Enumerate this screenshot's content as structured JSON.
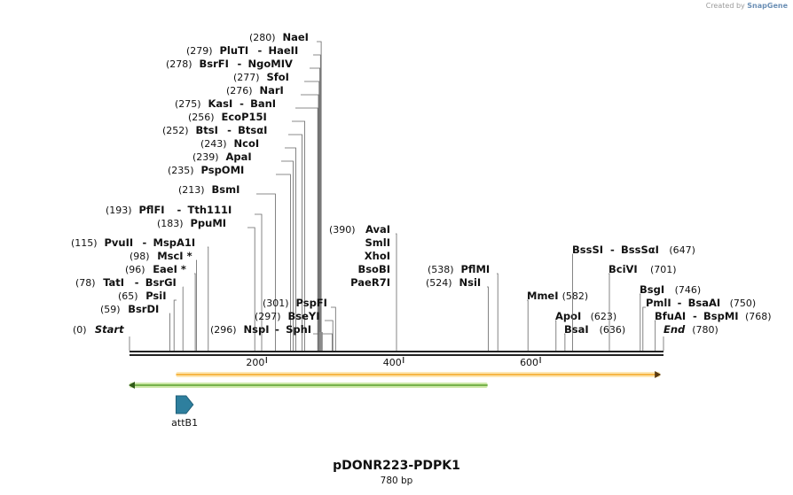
{
  "credit": {
    "prefix": "Created by",
    "brand": "SnapGene"
  },
  "plasmid": {
    "name": "pDONR223-PDPK1",
    "length_label": "780 bp"
  },
  "sites": [
    {
      "id": "start",
      "pos": "(0)",
      "names": [
        "Start"
      ],
      "bp": 0,
      "marker": true
    },
    {
      "id": "bsrdi",
      "pos": "(59)",
      "names": [
        "BsrDI"
      ],
      "bp": 59
    },
    {
      "id": "psii",
      "pos": "(65)",
      "names": [
        "PsiI"
      ],
      "bp": 65
    },
    {
      "id": "tati",
      "pos": "(78)",
      "names": [
        "TatI",
        "BsrGI"
      ],
      "bp": 78
    },
    {
      "id": "eaei",
      "pos": "(96)",
      "names": [
        "EaeI *"
      ],
      "bp": 96
    },
    {
      "id": "msci",
      "pos": "(98)",
      "names": [
        "MscI *"
      ],
      "bp": 98
    },
    {
      "id": "pvuii",
      "pos": "(115)",
      "names": [
        "PvuII",
        "MspA1I"
      ],
      "bp": 115
    },
    {
      "id": "ppumi",
      "pos": "(183)",
      "names": [
        "PpuMI"
      ],
      "bp": 183
    },
    {
      "id": "pflfi",
      "pos": "(193)",
      "names": [
        "PflFI",
        "Tth111I"
      ],
      "bp": 193
    },
    {
      "id": "bsmi",
      "pos": "(213)",
      "names": [
        "BsmI"
      ],
      "bp": 213
    },
    {
      "id": "pspomi",
      "pos": "(235)",
      "names": [
        "PspOMI"
      ],
      "bp": 235
    },
    {
      "id": "apai",
      "pos": "(239)",
      "names": [
        "ApaI"
      ],
      "bp": 239
    },
    {
      "id": "ncoi",
      "pos": "(243)",
      "names": [
        "NcoI"
      ],
      "bp": 243
    },
    {
      "id": "btsi",
      "pos": "(252)",
      "names": [
        "BtsI",
        "BtsαI"
      ],
      "bp": 252
    },
    {
      "id": "ecop15i",
      "pos": "(256)",
      "names": [
        "EcoP15I"
      ],
      "bp": 256
    },
    {
      "id": "kasi",
      "pos": "(275)",
      "names": [
        "KasI",
        "BanI"
      ],
      "bp": 275
    },
    {
      "id": "nari",
      "pos": "(276)",
      "names": [
        "NarI"
      ],
      "bp": 276
    },
    {
      "id": "sfoi",
      "pos": "(277)",
      "names": [
        "SfoI"
      ],
      "bp": 277
    },
    {
      "id": "bsrfi",
      "pos": "(278)",
      "names": [
        "BsrFI",
        "NgoMIV"
      ],
      "bp": 278
    },
    {
      "id": "pluti",
      "pos": "(279)",
      "names": [
        "PluTI",
        "HaeII"
      ],
      "bp": 279
    },
    {
      "id": "naei",
      "pos": "(280)",
      "names": [
        "NaeI"
      ],
      "bp": 280
    },
    {
      "id": "nspi",
      "pos": "(296)",
      "names": [
        "NspI",
        "SphI"
      ],
      "bp": 296
    },
    {
      "id": "bseyi",
      "pos": "(297)",
      "names": [
        "BseYI"
      ],
      "bp": 297
    },
    {
      "id": "pspfi",
      "pos": "(301)",
      "names": [
        "PspFI"
      ],
      "bp": 301
    },
    {
      "id": "avai",
      "pos": "(390)",
      "names": [
        "AvaI",
        "SmlI",
        "XhoI",
        "BsoBI",
        "PaeR7I"
      ],
      "bp": 390
    },
    {
      "id": "nsii",
      "pos": "(524)",
      "names": [
        "NsiI"
      ],
      "bp": 524
    },
    {
      "id": "pflmi",
      "pos": "(538)",
      "names": [
        "PflMI"
      ],
      "bp": 538
    },
    {
      "id": "mmei",
      "pos": "(582)",
      "names": [
        "MmeI"
      ],
      "bp": 582
    },
    {
      "id": "apoi",
      "pos": "(623)",
      "names": [
        "ApoI"
      ],
      "bp": 623
    },
    {
      "id": "bsai",
      "pos": "(636)",
      "names": [
        "BsaI"
      ],
      "bp": 636
    },
    {
      "id": "bsssi",
      "pos": "(647)",
      "names": [
        "BssSI",
        "BssSαI"
      ],
      "bp": 647
    },
    {
      "id": "bcivi",
      "pos": "(701)",
      "names": [
        "BciVI"
      ],
      "bp": 701
    },
    {
      "id": "bsgi",
      "pos": "(746)",
      "names": [
        "BsgI"
      ],
      "bp": 746
    },
    {
      "id": "pmli",
      "pos": "(750)",
      "names": [
        "PmlI",
        "BsaAI"
      ],
      "bp": 750
    },
    {
      "id": "bfuai",
      "pos": "(768)",
      "names": [
        "BfuAI",
        "BspMI"
      ],
      "bp": 768
    },
    {
      "id": "end",
      "pos": "(780)",
      "names": [
        "End"
      ],
      "bp": 780,
      "marker": true
    }
  ],
  "ruler": {
    "total_bp": 780,
    "ticks": [
      200,
      400,
      600
    ]
  },
  "features": [
    {
      "id": "orf-forward",
      "start_bp": 68,
      "end_bp": 775,
      "direction": "forward",
      "color": "#f5a623",
      "fill": "#fde7b5"
    },
    {
      "id": "orf-reverse",
      "start_bp": 0,
      "end_bp": 523,
      "direction": "reverse",
      "color": "#5aa02c",
      "fill": "#cde8a8"
    },
    {
      "id": "attb1",
      "label": "attB1",
      "start_bp": 68,
      "end_bp": 93,
      "direction": "forward",
      "color": "#2e7f9e"
    }
  ],
  "colors": {
    "backbone": "#222222",
    "cut_line": "#666666"
  }
}
